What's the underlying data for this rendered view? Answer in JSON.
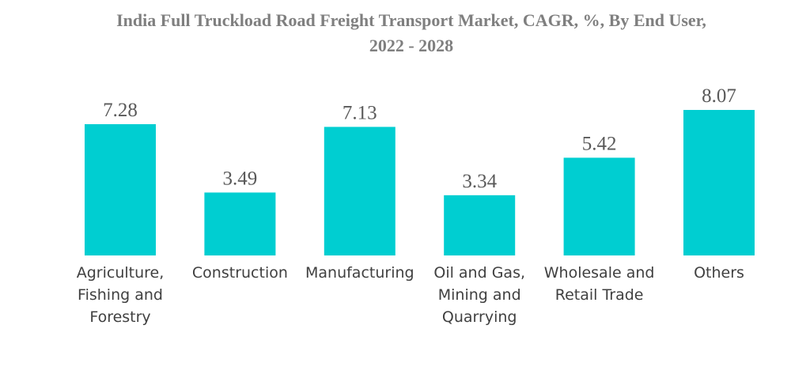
{
  "chart_data": {
    "type": "bar",
    "title": "India Full Truckload Road Freight Transport Market, CAGR, %, By End User, 2022 - 2028",
    "title_lines": [
      "India Full Truckload Road Freight Transport Market, CAGR, %, By End User,",
      "2022 - 2028"
    ],
    "categories": [
      "Agriculture, Fishing and Forestry",
      "Construction",
      "Manufacturing",
      "Oil and Gas, Mining and Quarrying",
      "Wholesale and Retail Trade",
      "Others"
    ],
    "category_lines": [
      [
        "Agriculture,",
        "Fishing and",
        "Forestry"
      ],
      [
        "Construction"
      ],
      [
        "Manufacturing"
      ],
      [
        "Oil and Gas,",
        "Mining and",
        "Quarrying"
      ],
      [
        "Wholesale and",
        "Retail Trade"
      ],
      [
        "Others"
      ]
    ],
    "values": [
      7.28,
      3.49,
      7.13,
      3.34,
      5.42,
      8.07
    ],
    "value_labels": [
      "7.28",
      "3.49",
      "7.13",
      "3.34",
      "5.42",
      "8.07"
    ],
    "xlabel": "",
    "ylabel": "",
    "ylim": [
      0,
      9.1
    ],
    "grid": false,
    "legend": "none",
    "bar_color": "#00CED1"
  }
}
